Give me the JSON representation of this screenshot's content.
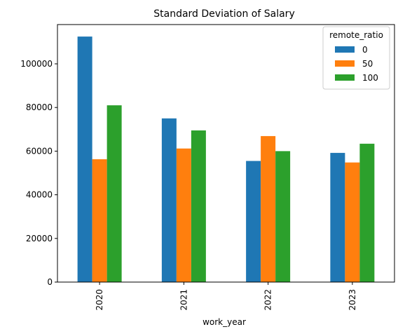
{
  "chart_data": {
    "type": "bar",
    "title": "Standard Deviation of Salary",
    "xlabel": "work_year",
    "ylabel": "",
    "categories": [
      "2020",
      "2021",
      "2022",
      "2023"
    ],
    "series": [
      {
        "name": "0",
        "color": "#1f77b4",
        "values": [
          112500,
          75000,
          55500,
          59200
        ]
      },
      {
        "name": "50",
        "color": "#ff7f0e",
        "values": [
          56300,
          61200,
          66900,
          54800
        ]
      },
      {
        "name": "100",
        "color": "#2ca02c",
        "values": [
          81000,
          69500,
          60000,
          63400
        ]
      }
    ],
    "ylim": [
      0,
      118000
    ],
    "yticks": [
      0,
      20000,
      40000,
      60000,
      80000,
      100000
    ],
    "legend": {
      "title": "remote_ratio",
      "placement": "top-right"
    },
    "grid": false
  }
}
